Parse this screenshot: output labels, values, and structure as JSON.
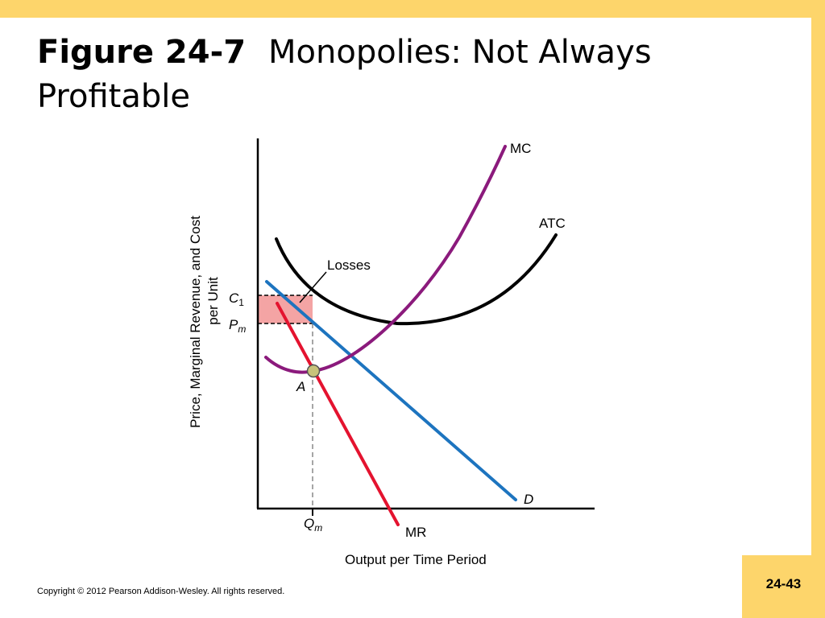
{
  "title": {
    "figure_label": "Figure 24-7",
    "text": "Monopolies: Not Always Profitable"
  },
  "diagram": {
    "y_axis_title_line1": "Price, Marginal Revenue, and Cost",
    "y_axis_title_line2": "per Unit",
    "x_axis_title": "Output per Time Period",
    "curve_labels": {
      "mc": "MC",
      "atc": "ATC",
      "demand": "D",
      "mr": "MR"
    },
    "region_label": "Losses",
    "point_label": "A",
    "tick_labels": {
      "c1_base": "C",
      "c1_sub": "1",
      "pm_base": "P",
      "pm_sub": "m",
      "qm_base": "Q",
      "qm_sub": "m"
    },
    "colors": {
      "mc": "#8b1a7c",
      "atc": "#000000",
      "demand": "#1d74bf",
      "mr": "#e4132f",
      "losses_fill": "#f4a4a4",
      "point_fill": "#c7c37a"
    }
  },
  "footer": {
    "copyright": "Copyright © 2012 Pearson Addison-Wesley. All rights reserved.",
    "page_number": "24-43"
  }
}
